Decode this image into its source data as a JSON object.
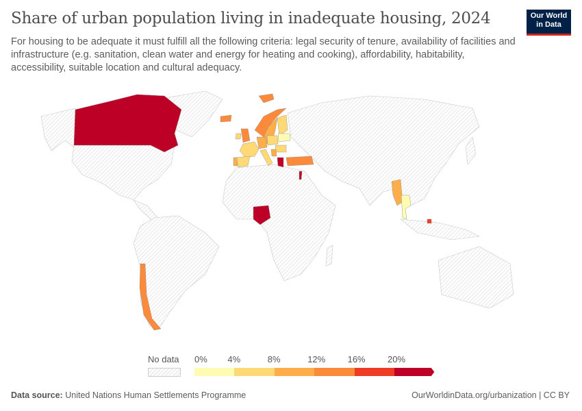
{
  "header": {
    "title": "Share of urban population living in inadequate housing, 2024",
    "subtitle": "For housing to be adequate it must fulfill all the following criteria: legal security of tenure, availability of facilities and infrastructure (e.g. sanitation, clean water and energy for heating and cooking), affordability, habitability, accessibility, suitable location and cultural adequacy.",
    "logo": "Our World in Data"
  },
  "legend": {
    "no_data_label": "No data",
    "ticks": [
      "0%",
      "4%",
      "8%",
      "12%",
      "16%",
      "20%"
    ],
    "bins": [
      {
        "range": "0-4%",
        "color": "#fefcb2"
      },
      {
        "range": "4-8%",
        "color": "#fed976"
      },
      {
        "range": "8-12%",
        "color": "#fdae4b"
      },
      {
        "range": "12-16%",
        "color": "#fc8a3b"
      },
      {
        "range": "16-20%",
        "color": "#ee3b24"
      },
      {
        "range": ">20%",
        "color": "#bd0026"
      }
    ]
  },
  "map": {
    "no_data_color": "#eeeeee",
    "countries": [
      {
        "name": "Canada",
        "bin": 5
      },
      {
        "name": "Chile",
        "bin": 3
      },
      {
        "name": "Nigeria",
        "bin": 5
      },
      {
        "name": "Greece",
        "bin": 5
      },
      {
        "name": "Israel",
        "bin": 5
      },
      {
        "name": "Turkey",
        "bin": 3
      },
      {
        "name": "Myanmar",
        "bin": 2
      },
      {
        "name": "Thailand",
        "bin": 0
      },
      {
        "name": "Brunei",
        "bin": 4
      },
      {
        "name": "Norway",
        "bin": 3
      },
      {
        "name": "Sweden",
        "bin": 2
      },
      {
        "name": "Finland",
        "bin": 1
      },
      {
        "name": "Iceland",
        "bin": 3
      },
      {
        "name": "Svalbard",
        "bin": 3
      },
      {
        "name": "United Kingdom",
        "bin": 3
      },
      {
        "name": "Ireland",
        "bin": 1
      },
      {
        "name": "France",
        "bin": 1
      },
      {
        "name": "Spain",
        "bin": 1
      },
      {
        "name": "Portugal",
        "bin": 2
      },
      {
        "name": "Germany",
        "bin": 2
      },
      {
        "name": "Poland",
        "bin": 1
      },
      {
        "name": "Belarus",
        "bin": 0
      },
      {
        "name": "Italy",
        "bin": 1
      },
      {
        "name": "Romania",
        "bin": 1
      },
      {
        "name": "Serbia",
        "bin": 2
      }
    ]
  },
  "footer": {
    "source_label": "Data source:",
    "source": "United Nations Human Settlements Programme",
    "link": "OurWorldinData.org/urbanization | CC BY"
  }
}
